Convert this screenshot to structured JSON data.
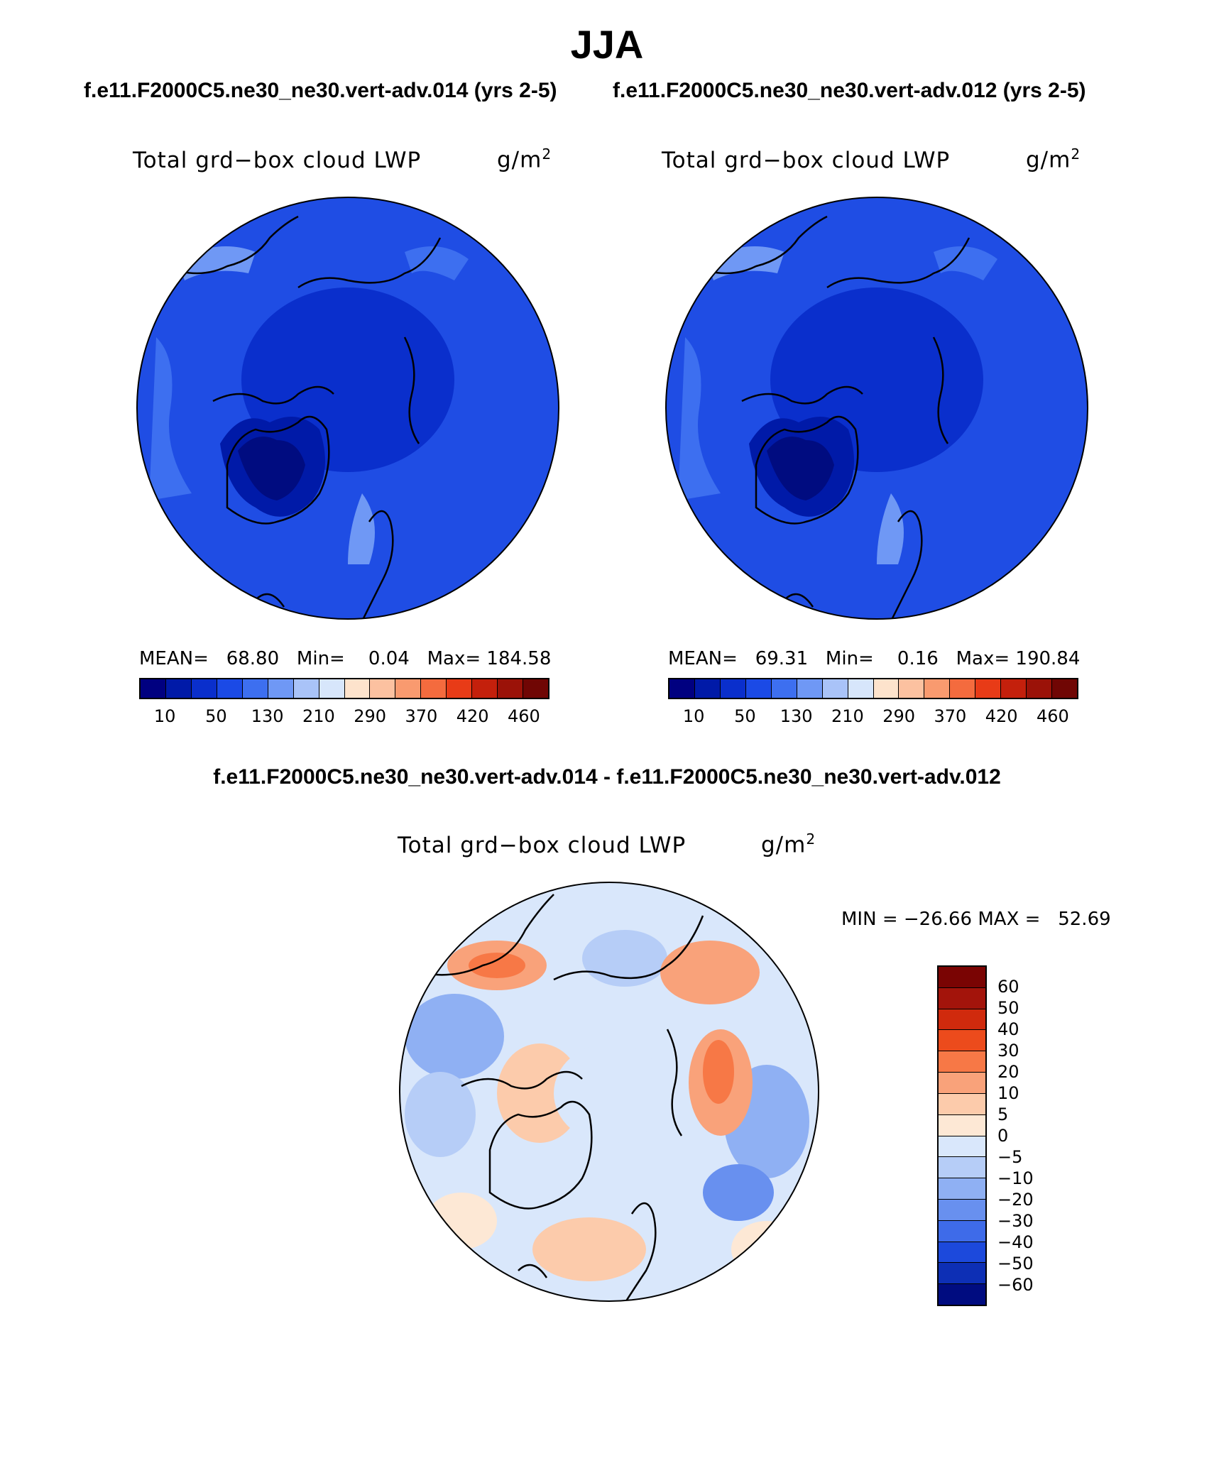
{
  "title": "JJA",
  "top_left": {
    "case": "f.e11.F2000C5.ne30_ne30.vert-adv.014 (yrs 2-5)",
    "variable": "Total grd−box cloud LWP",
    "units_base": "g/m",
    "units_exp": "2",
    "mean_label": "MEAN=",
    "mean": "68.80",
    "min_label": "Min=",
    "min": "0.04",
    "max_label": "Max=",
    "max": "184.58"
  },
  "top_right": {
    "case": "f.e11.F2000C5.ne30_ne30.vert-adv.012 (yrs 2-5)",
    "variable": "Total grd−box cloud LWP",
    "units_base": "g/m",
    "units_exp": "2",
    "mean_label": "MEAN=",
    "mean": "69.31",
    "min_label": "Min=",
    "min": "0.16",
    "max_label": "Max=",
    "max": "190.84"
  },
  "abs_colorbar": {
    "colors": [
      "#000080",
      "#001aa8",
      "#0a2fcc",
      "#1b4ae6",
      "#3d6ff0",
      "#6f98f5",
      "#a9c3f8",
      "#d7e6fb",
      "#fde3cc",
      "#fcc1a0",
      "#f99a6f",
      "#f46b3e",
      "#e83b17",
      "#c4200c",
      "#9b1208",
      "#700604"
    ],
    "tick_labels": [
      "10",
      "50",
      "130",
      "210",
      "290",
      "370",
      "420",
      "460"
    ]
  },
  "diff_panel": {
    "case": "f.e11.F2000C5.ne30_ne30.vert-adv.014 - f.e11.F2000C5.ne30_ne30.vert-adv.012",
    "variable": "Total grd−box cloud LWP",
    "units_base": "g/m",
    "units_exp": "2",
    "minmax_text": "MIN = −26.66 MAX =   52.69"
  },
  "diff_colorbar": {
    "colors": [
      "#7a0403",
      "#a3140b",
      "#d02a0d",
      "#ec4b1c",
      "#f77846",
      "#f9a27a",
      "#fccbab",
      "#fde8d5",
      "#d9e7fb",
      "#b6cdf7",
      "#8fb0f3",
      "#6890ef",
      "#3e6be9",
      "#1c49dc",
      "#0d2fb5",
      "#000c80"
    ],
    "tick_labels": [
      "60",
      "50",
      "40",
      "30",
      "20",
      "10",
      "5",
      "0",
      "−5",
      "−10",
      "−20",
      "−30",
      "−40",
      "−50",
      "−60"
    ]
  }
}
